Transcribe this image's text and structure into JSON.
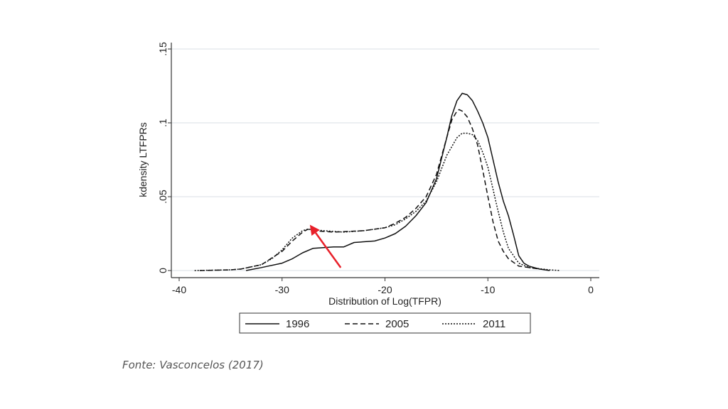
{
  "chart_data": {
    "type": "line",
    "title": "",
    "xlabel": "Distribution of Log(TFPR)",
    "ylabel": "kdensity LTFPRs",
    "xlim": [
      -40,
      0
    ],
    "ylim": [
      0,
      0.15
    ],
    "xticks": [
      -40,
      -30,
      -20,
      -10,
      0
    ],
    "xtick_labels": [
      "-40",
      "-30",
      "-20",
      "-10",
      "0"
    ],
    "yticks": [
      0,
      0.05,
      0.1,
      0.15
    ],
    "ytick_labels": [
      "0",
      ".05",
      ".1",
      ".15"
    ],
    "grid": true,
    "legend_position": "bottom",
    "series": [
      {
        "name": "1996",
        "style": "solid",
        "x": [
          -33.5,
          -32,
          -30,
          -29,
          -28,
          -27,
          -25,
          -24,
          -23,
          -21,
          -20,
          -19,
          -18,
          -17,
          -16,
          -15,
          -14,
          -13.5,
          -13,
          -12.5,
          -12,
          -11.5,
          -11,
          -10.5,
          -10,
          -9.5,
          -9,
          -8.5,
          -8,
          -7.5,
          -7,
          -6.5,
          -6,
          -5,
          -4
        ],
        "y": [
          0,
          0.002,
          0.005,
          0.008,
          0.012,
          0.015,
          0.016,
          0.016,
          0.019,
          0.02,
          0.022,
          0.025,
          0.03,
          0.037,
          0.046,
          0.062,
          0.09,
          0.105,
          0.115,
          0.12,
          0.119,
          0.115,
          0.108,
          0.1,
          0.09,
          0.075,
          0.06,
          0.047,
          0.037,
          0.024,
          0.01,
          0.005,
          0.003,
          0.001,
          0
        ]
      },
      {
        "name": "2005",
        "style": "dashed",
        "x": [
          -38,
          -35,
          -34,
          -32,
          -30,
          -29,
          -28,
          -27.5,
          -27,
          -25,
          -22,
          -20,
          -19,
          -18,
          -17,
          -16,
          -15,
          -14,
          -13.5,
          -13,
          -12.8,
          -12.5,
          -12,
          -11.5,
          -11,
          -10.5,
          -10,
          -9.5,
          -9,
          -8.5,
          -8,
          -7,
          -6,
          -5
        ],
        "y": [
          0,
          0.0005,
          0.001,
          0.004,
          0.013,
          0.02,
          0.026,
          0.028,
          0.027,
          0.026,
          0.027,
          0.029,
          0.032,
          0.036,
          0.042,
          0.05,
          0.065,
          0.09,
          0.102,
          0.108,
          0.109,
          0.108,
          0.104,
          0.096,
          0.085,
          0.068,
          0.05,
          0.033,
          0.02,
          0.013,
          0.008,
          0.003,
          0.002,
          0.001
        ]
      },
      {
        "name": "2011",
        "style": "dotted",
        "x": [
          -38.5,
          -35,
          -34,
          -32,
          -31,
          -30,
          -29,
          -28,
          -27.5,
          -26,
          -24,
          -22,
          -20,
          -19,
          -18,
          -17,
          -16,
          -15,
          -14,
          -13,
          -12.5,
          -12,
          -11.5,
          -11,
          -10.5,
          -10,
          -9.5,
          -9,
          -8.5,
          -8,
          -7,
          -6,
          -4,
          -3
        ],
        "y": [
          0,
          0.0005,
          0.001,
          0.004,
          0.008,
          0.014,
          0.022,
          0.027,
          0.028,
          0.027,
          0.026,
          0.027,
          0.029,
          0.031,
          0.035,
          0.04,
          0.047,
          0.06,
          0.078,
          0.09,
          0.093,
          0.093,
          0.092,
          0.088,
          0.08,
          0.07,
          0.055,
          0.04,
          0.026,
          0.015,
          0.005,
          0.002,
          0.0005,
          0
        ]
      }
    ],
    "annotation": {
      "type": "arrow",
      "color": "#e8202a",
      "from": [
        -24.3,
        0.002
      ],
      "to": [
        -27.3,
        0.031
      ]
    }
  },
  "source": "Fonte: Vasconcelos (2017)"
}
